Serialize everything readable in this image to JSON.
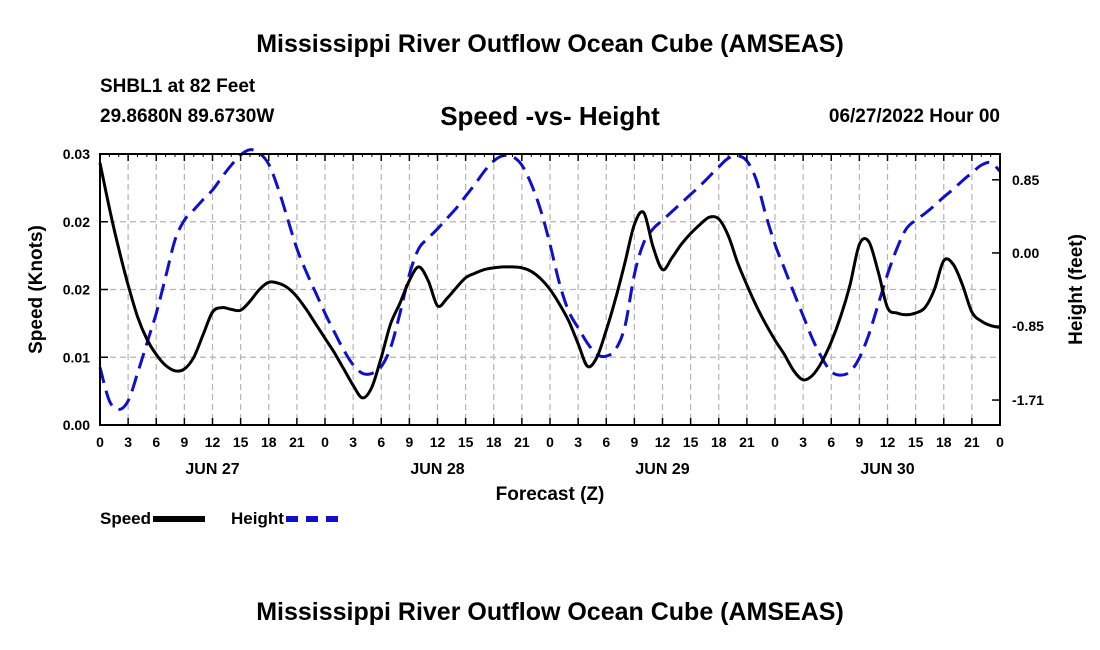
{
  "header": {
    "title": "Mississippi River Outflow Ocean Cube (AMSEAS)",
    "station": "SHBL1 at 82 Feet",
    "coords": "29.8680N  89.6730W",
    "subtitle": "Speed -vs- Height",
    "date": "06/27/2022 Hour 00"
  },
  "footer": {
    "title": "Mississippi River Outflow Ocean Cube (AMSEAS)"
  },
  "legend": {
    "speed_label": "Speed",
    "height_label": "Height"
  },
  "colors": {
    "speed": "#000000",
    "height": "#1010cc",
    "grid": "#b4b4b4"
  },
  "chart_data": {
    "type": "line",
    "title": "Speed -vs- Height",
    "xlabel": "Forecast (Z)",
    "ylabel": "Speed (Knots)",
    "y2label": "Height (feet)",
    "xlim": [
      0,
      96
    ],
    "ylim": [
      0,
      0.03
    ],
    "y2lim": [
      -2.0,
      1.15
    ],
    "x_tick_step": 3,
    "x_tick_labels": [
      "0",
      "3",
      "6",
      "9",
      "12",
      "15",
      "18",
      "21",
      "0",
      "3",
      "6",
      "9",
      "12",
      "15",
      "18",
      "21",
      "0",
      "3",
      "6",
      "9",
      "12",
      "15",
      "18",
      "21",
      "0",
      "3",
      "6",
      "9",
      "12",
      "15",
      "18",
      "21",
      "0"
    ],
    "y_ticks": [
      0,
      0.0075,
      0.015,
      0.0225,
      0.03
    ],
    "y_tick_labels": [
      "0.00",
      "0.01",
      "0.02",
      "0.02",
      "0.03"
    ],
    "y2_ticks": [
      -1.71,
      -0.85,
      0.0,
      0.85
    ],
    "y2_tick_labels": [
      "-1.71",
      "-0.85",
      "0.00",
      "0.85"
    ],
    "day_labels": [
      {
        "x": 12,
        "label": "JUN 27"
      },
      {
        "x": 36,
        "label": "JUN 28"
      },
      {
        "x": 60,
        "label": "JUN 29"
      },
      {
        "x": 84,
        "label": "JUN 30"
      }
    ],
    "series": [
      {
        "name": "Speed",
        "axis": "left",
        "style": "solid",
        "x": [
          0,
          1,
          2,
          3,
          4,
          5,
          6,
          7,
          8,
          9,
          10,
          11,
          12,
          13,
          14,
          15,
          16,
          17,
          18,
          19,
          20,
          21,
          22,
          23,
          24,
          25,
          26,
          27,
          28,
          29,
          30,
          31,
          32,
          33,
          34,
          35,
          36,
          37,
          38,
          39,
          40,
          41,
          42,
          43,
          44,
          45,
          46,
          47,
          48,
          49,
          50,
          51,
          52,
          53,
          54,
          55,
          56,
          57,
          58,
          59,
          60,
          61,
          62,
          63,
          64,
          65,
          66,
          67,
          68,
          69,
          70,
          71,
          72,
          73,
          74,
          75,
          76,
          77,
          78,
          79,
          80,
          81,
          82,
          83,
          84,
          85,
          86,
          87,
          88,
          89,
          90,
          91,
          92,
          93,
          94,
          95,
          96
        ],
        "values": [
          0.029,
          0.024,
          0.0195,
          0.0155,
          0.012,
          0.0095,
          0.0078,
          0.0066,
          0.006,
          0.0062,
          0.0075,
          0.01,
          0.0125,
          0.013,
          0.0128,
          0.0127,
          0.0137,
          0.015,
          0.0158,
          0.0157,
          0.0152,
          0.0142,
          0.0128,
          0.0112,
          0.0096,
          0.008,
          0.0062,
          0.0044,
          0.003,
          0.0042,
          0.0075,
          0.0112,
          0.0135,
          0.016,
          0.0175,
          0.016,
          0.0132,
          0.014,
          0.0152,
          0.0163,
          0.0168,
          0.0172,
          0.0174,
          0.0175,
          0.0175,
          0.0174,
          0.017,
          0.0162,
          0.015,
          0.0134,
          0.0115,
          0.009,
          0.0065,
          0.0075,
          0.0105,
          0.014,
          0.018,
          0.0222,
          0.0235,
          0.0197,
          0.0172,
          0.0185,
          0.02,
          0.0212,
          0.0222,
          0.023,
          0.0228,
          0.021,
          0.018,
          0.0155,
          0.0132,
          0.0112,
          0.0094,
          0.0078,
          0.006,
          0.005,
          0.0055,
          0.007,
          0.0092,
          0.012,
          0.0155,
          0.02,
          0.0203,
          0.017,
          0.013,
          0.0124,
          0.0122,
          0.0124,
          0.013,
          0.015,
          0.0182,
          0.0178,
          0.0155,
          0.0125,
          0.0115,
          0.011,
          0.0108
        ]
      },
      {
        "name": "Height",
        "axis": "right",
        "style": "dashed",
        "x": [
          0,
          1,
          2,
          3,
          4,
          5,
          6,
          7,
          8,
          9,
          10,
          11,
          12,
          13,
          14,
          15,
          16,
          17,
          18,
          19,
          20,
          21,
          22,
          23,
          24,
          25,
          26,
          27,
          28,
          29,
          30,
          31,
          32,
          33,
          34,
          35,
          36,
          37,
          38,
          39,
          40,
          41,
          42,
          43,
          44,
          45,
          46,
          47,
          48,
          49,
          50,
          51,
          52,
          53,
          54,
          55,
          56,
          57,
          58,
          59,
          60,
          61,
          62,
          63,
          64,
          65,
          66,
          67,
          68,
          69,
          70,
          71,
          72,
          73,
          74,
          75,
          76,
          77,
          78,
          79,
          80,
          81,
          82,
          83,
          84,
          85,
          86,
          87,
          88,
          89,
          90,
          91,
          92,
          93,
          94,
          95,
          96
        ],
        "values": [
          -1.33,
          -1.72,
          -1.82,
          -1.72,
          -1.4,
          -1.05,
          -0.7,
          -0.28,
          0.15,
          0.38,
          0.5,
          0.62,
          0.73,
          0.88,
          1.02,
          1.14,
          1.2,
          1.16,
          1.03,
          0.75,
          0.4,
          0.05,
          -0.22,
          -0.46,
          -0.7,
          -0.92,
          -1.13,
          -1.3,
          -1.4,
          -1.4,
          -1.32,
          -1.1,
          -0.7,
          -0.25,
          0.05,
          0.17,
          0.28,
          0.4,
          0.52,
          0.66,
          0.8,
          0.95,
          1.07,
          1.13,
          1.12,
          1.02,
          0.8,
          0.5,
          0.1,
          -0.35,
          -0.68,
          -0.87,
          -1.05,
          -1.18,
          -1.2,
          -1.12,
          -0.85,
          -0.25,
          0.12,
          0.28,
          0.38,
          0.48,
          0.58,
          0.68,
          0.78,
          0.89,
          1.0,
          1.1,
          1.13,
          1.07,
          0.85,
          0.45,
          0.1,
          -0.18,
          -0.46,
          -0.73,
          -1.0,
          -1.22,
          -1.38,
          -1.42,
          -1.38,
          -1.22,
          -0.95,
          -0.6,
          -0.25,
          0.05,
          0.28,
          0.38,
          0.46,
          0.55,
          0.65,
          0.74,
          0.84,
          0.93,
          1.02,
          1.05,
          0.95
        ]
      }
    ]
  }
}
